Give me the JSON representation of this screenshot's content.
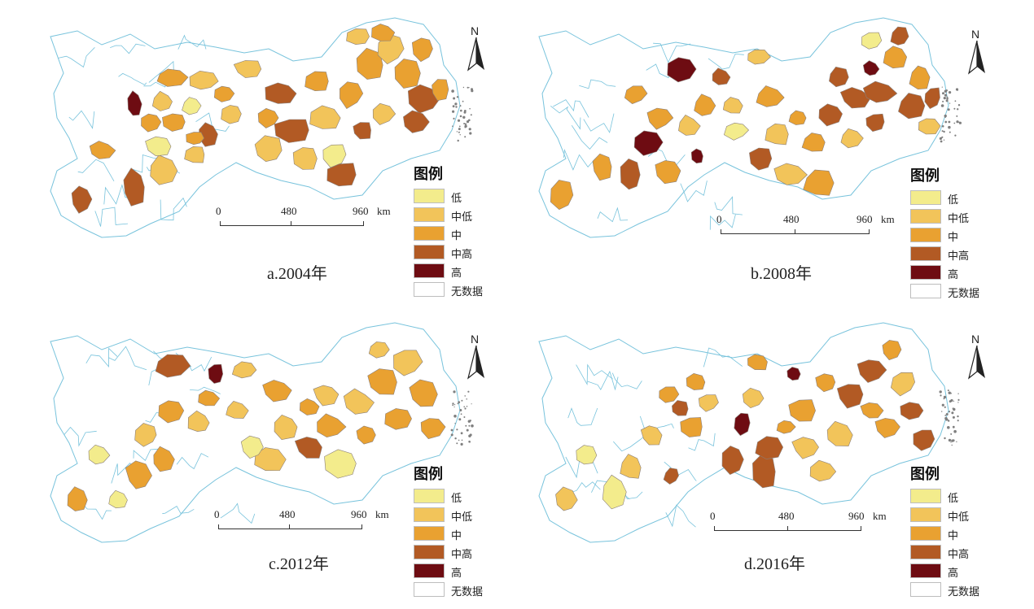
{
  "panels": [
    {
      "caption": "a.2004年",
      "scale": {
        "t0": "0",
        "t1": "480",
        "t2": "960",
        "unit": "km"
      },
      "north": "N"
    },
    {
      "caption": "b.2008年",
      "scale": {
        "t0": "0",
        "t1": "480",
        "t2": "960",
        "unit": "km"
      },
      "north": "N"
    },
    {
      "caption": "c.2012年",
      "scale": {
        "t0": "0",
        "t1": "480",
        "t2": "960",
        "unit": "km"
      },
      "north": "N"
    },
    {
      "caption": "d.2016年",
      "scale": {
        "t0": "0",
        "t1": "480",
        "t2": "960",
        "unit": "km"
      },
      "north": "N"
    }
  ],
  "legend": {
    "title": "图例",
    "items": [
      {
        "label": "低",
        "color": "#f3ec8c"
      },
      {
        "label": "中低",
        "color": "#f2c45a"
      },
      {
        "label": "中",
        "color": "#e9a131"
      },
      {
        "label": "中高",
        "color": "#b25a24"
      },
      {
        "label": "高",
        "color": "#6e0c12"
      },
      {
        "label": "无数据",
        "color": "#ffffff"
      }
    ]
  },
  "colors": {
    "boundary_blue": "#78c3dc",
    "region_border": "#8a7f7a",
    "coast": "#7f7f7f"
  }
}
